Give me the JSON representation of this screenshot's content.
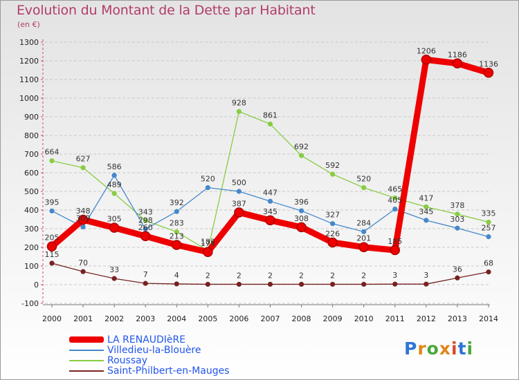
{
  "title": "Evolution du Montant de la Dette par Habitant",
  "unit_label": "(en €)",
  "logo": {
    "letters": [
      "P",
      "r",
      "o",
      "x",
      "i",
      "t",
      "i"
    ],
    "colors": [
      "#2e75d6",
      "#e0861a",
      "#49a83a",
      "#e0861a",
      "#d94a2a",
      "#2e75d6",
      "#49a83a"
    ]
  },
  "chart_data": {
    "type": "line",
    "x": [
      "2000",
      "2001",
      "2002",
      "2003",
      "2004",
      "2005",
      "2006",
      "2007",
      "2008",
      "2009",
      "2010",
      "2011",
      "2012",
      "2013",
      "2014"
    ],
    "ylim": [
      -100,
      1300
    ],
    "yticks": [
      -100,
      0,
      100,
      200,
      300,
      400,
      500,
      600,
      700,
      800,
      900,
      1000,
      1100,
      1200,
      1300
    ],
    "grid": "horizontal dashed",
    "legend_position": "bottom",
    "title": "Evolution du Montant de la Dette par Habitant",
    "ylabel": "(en €)",
    "series": [
      {
        "name": "Roussay",
        "color": "#88cc44",
        "values": [
          664,
          627,
          489,
          343,
          283,
          183,
          928,
          861,
          692,
          592,
          520,
          465,
          417,
          378,
          335
        ]
      },
      {
        "name": "Villedieu-la-Blouère",
        "color": "#4488cc",
        "values": [
          395,
          309,
          586,
          298,
          392,
          520,
          500,
          447,
          396,
          327,
          284,
          405,
          345,
          303,
          257
        ]
      },
      {
        "name": "Saint-Philbert-en-Mauges",
        "color": "#772222",
        "values": [
          115,
          70,
          33,
          7,
          4,
          2,
          2,
          2,
          2,
          2,
          2,
          3,
          3,
          36,
          68
        ]
      },
      {
        "name": "LA RENAUDIèRE",
        "color": "#ee0000",
        "values": [
          205,
          348,
          305,
          260,
          213,
          175,
          387,
          345,
          308,
          226,
          201,
          185,
          1206,
          1186,
          1136
        ]
      }
    ]
  }
}
